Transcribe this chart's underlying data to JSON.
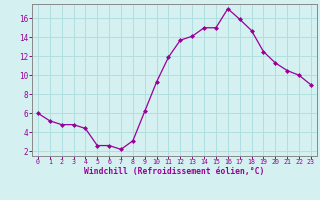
{
  "x": [
    0,
    1,
    2,
    3,
    4,
    5,
    6,
    7,
    8,
    9,
    10,
    11,
    12,
    13,
    14,
    15,
    16,
    17,
    18,
    19,
    20,
    21,
    22,
    23
  ],
  "y": [
    6.0,
    5.2,
    4.8,
    4.8,
    4.4,
    2.6,
    2.6,
    2.2,
    3.1,
    6.2,
    9.3,
    11.9,
    13.7,
    14.1,
    15.0,
    15.0,
    17.0,
    15.9,
    14.7,
    12.5,
    11.3,
    10.5,
    10.0,
    9.0
  ],
  "line_color": "#990099",
  "marker": "D",
  "marker_size": 2.0,
  "bg_color": "#d4f0f0",
  "grid_color": "#b0dede",
  "xlabel": "Windchill (Refroidissement éolien,°C)",
  "xlabel_color": "#990099",
  "tick_color": "#990099",
  "spine_color": "#888888",
  "ylim": [
    1.5,
    17.5
  ],
  "xlim": [
    -0.5,
    23.5
  ],
  "yticks": [
    2,
    4,
    6,
    8,
    10,
    12,
    14,
    16
  ],
  "xticks": [
    0,
    1,
    2,
    3,
    4,
    5,
    6,
    7,
    8,
    9,
    10,
    11,
    12,
    13,
    14,
    15,
    16,
    17,
    18,
    19,
    20,
    21,
    22,
    23
  ],
  "xtick_labels": [
    "0",
    "1",
    "2",
    "3",
    "4",
    "5",
    "6",
    "7",
    "8",
    "9",
    "10",
    "11",
    "12",
    "13",
    "14",
    "15",
    "16",
    "17",
    "18",
    "19",
    "20",
    "21",
    "22",
    "23"
  ]
}
